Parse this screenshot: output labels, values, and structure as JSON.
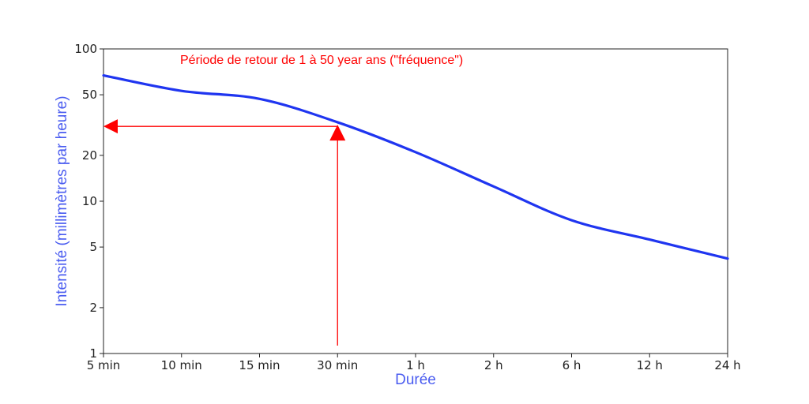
{
  "chart_data": {
    "type": "line",
    "title": "",
    "xlabel": "Durée",
    "ylabel": "Intensité (millimètres par heure)",
    "x_ticks": [
      "5 min",
      "10 min",
      "15 min",
      "30 min",
      "1 h",
      "2 h",
      "6 h",
      "12 h",
      "24 h"
    ],
    "y_scale": "log",
    "y_ticks": [
      1,
      2,
      5,
      10,
      20,
      50,
      100
    ],
    "y_tick_labels": [
      "1",
      "2",
      "5",
      "10",
      "20",
      "50",
      "100"
    ],
    "ylim": [
      1,
      100
    ],
    "grid": false,
    "series": [
      {
        "name": "",
        "color": "#1f35f0",
        "x": [
          "5 min",
          "10 min",
          "15 min",
          "30 min",
          "1 h",
          "2 h",
          "6 h",
          "12 h",
          "24 h"
        ],
        "values": [
          67,
          53,
          47,
          33,
          21,
          12.5,
          7.5,
          5.6,
          4.2
        ]
      }
    ],
    "annotation": {
      "text": "Période de retour de 1 à 50 year ans (\"fréquence\")",
      "color": "#ff0000",
      "reading_x": "30 min",
      "reading_y": 31
    },
    "colors": {
      "axis_title": "#4a5cf0",
      "annotation": "#ff0000",
      "axes": "#222222"
    }
  }
}
